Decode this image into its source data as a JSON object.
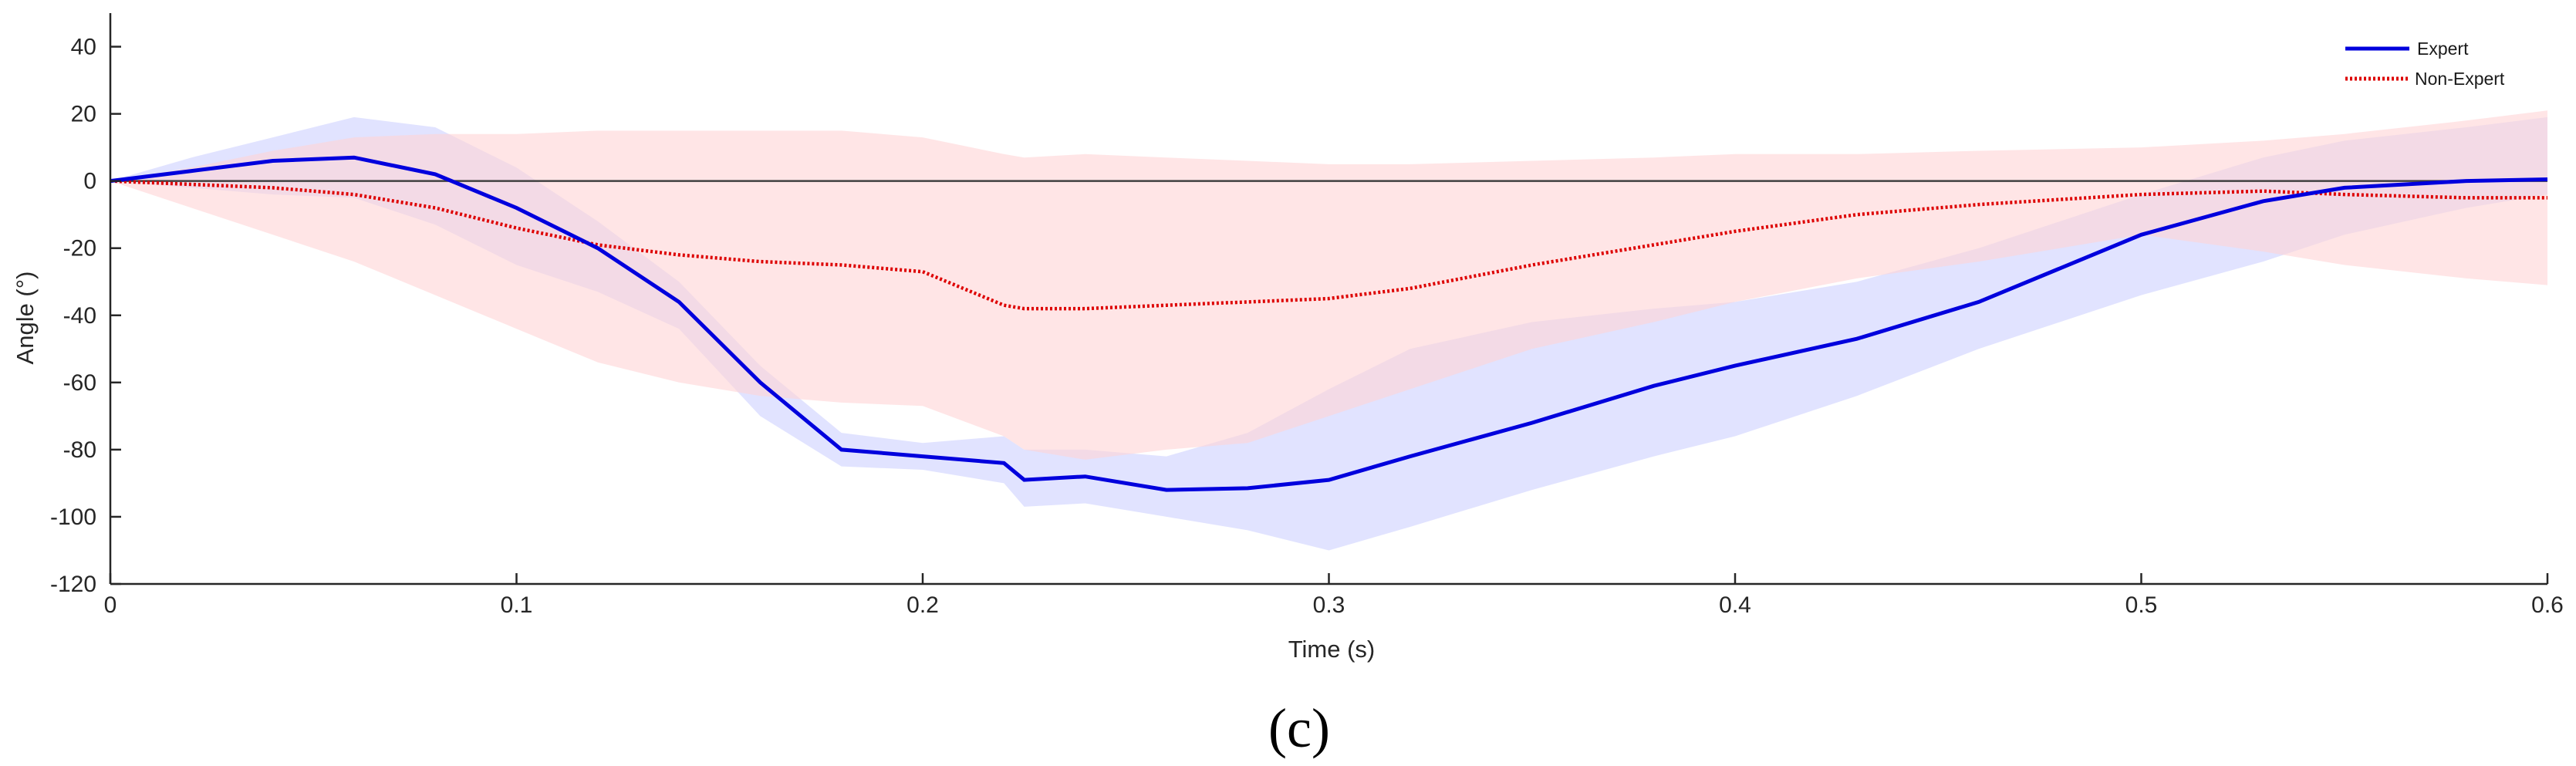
{
  "chart_data": {
    "type": "line",
    "title": "",
    "panel_label": "(c)",
    "xlabel": "Time (s)",
    "ylabel": "Angle (°)",
    "xlim": [
      0,
      0.6
    ],
    "ylim": [
      -120,
      50
    ],
    "xticks": [
      0,
      0.1,
      0.2,
      0.3,
      0.4,
      0.5,
      0.6
    ],
    "xtick_labels": [
      "0",
      "0.1",
      "0.2",
      "0.3",
      "0.4",
      "0.5",
      "0.6"
    ],
    "yticks": [
      -120,
      -100,
      -80,
      -60,
      -40,
      -20,
      0,
      20,
      40
    ],
    "ytick_labels": [
      "-120",
      "-100",
      "-80",
      "-60",
      "-40",
      "-20",
      "0",
      "20",
      "40"
    ],
    "zero_line": true,
    "legend_position": "top-right",
    "x": [
      0,
      0.02,
      0.04,
      0.06,
      0.08,
      0.1,
      0.12,
      0.14,
      0.16,
      0.18,
      0.2,
      0.22,
      0.225,
      0.24,
      0.26,
      0.28,
      0.3,
      0.32,
      0.35,
      0.38,
      0.4,
      0.43,
      0.46,
      0.5,
      0.53,
      0.55,
      0.58,
      0.6
    ],
    "series": [
      {
        "name": "Expert",
        "color": "#0000dd",
        "style": "solid",
        "band_color": "#c8ccff",
        "values": [
          0,
          3,
          6,
          7,
          2,
          -8,
          -20,
          -36,
          -60,
          -80,
          -82,
          -84,
          -89,
          -88,
          -92,
          -91.5,
          -89,
          -82,
          -72,
          -61,
          -55,
          -47,
          -36,
          -16,
          -6,
          -2,
          0,
          0.5
        ],
        "band_upper": [
          0,
          7,
          13,
          19,
          16,
          4,
          -12,
          -30,
          -55,
          -75,
          -78,
          -76,
          -80,
          -80,
          -82,
          -75,
          -62,
          -50,
          -42,
          -38,
          -36,
          -30,
          -20,
          -4,
          7,
          12,
          16,
          19
        ],
        "band_lower": [
          0,
          -2,
          -4,
          -5,
          -13,
          -25,
          -33,
          -44,
          -70,
          -85,
          -86,
          -90,
          -97,
          -96,
          -100,
          -104,
          -110,
          -103,
          -92,
          -82,
          -76,
          -64,
          -50,
          -34,
          -24,
          -16,
          -8,
          -4
        ]
      },
      {
        "name": "Non-Expert",
        "color": "#dd0000",
        "style": "dotted",
        "band_color": "#ffd3d6",
        "values": [
          0,
          -1,
          -2,
          -4,
          -8,
          -14,
          -19,
          -22,
          -24,
          -25,
          -27,
          -37,
          -38,
          -38,
          -37,
          -36,
          -35,
          -32,
          -25,
          -19,
          -15,
          -10,
          -7,
          -4,
          -3,
          -4,
          -5,
          -5
        ],
        "band_upper": [
          0,
          4,
          9,
          13,
          14,
          14,
          15,
          15,
          15,
          15,
          13,
          8,
          7,
          8,
          7,
          6,
          5,
          5,
          6,
          7,
          8,
          8,
          9,
          10,
          12,
          14,
          18,
          21
        ],
        "band_lower": [
          0,
          -8,
          -16,
          -24,
          -34,
          -44,
          -54,
          -60,
          -64,
          -66,
          -67,
          -76,
          -80,
          -83,
          -80,
          -78,
          -70,
          -62,
          -50,
          -42,
          -36,
          -29,
          -24,
          -16,
          -21,
          -25,
          -29,
          -31
        ]
      }
    ]
  }
}
